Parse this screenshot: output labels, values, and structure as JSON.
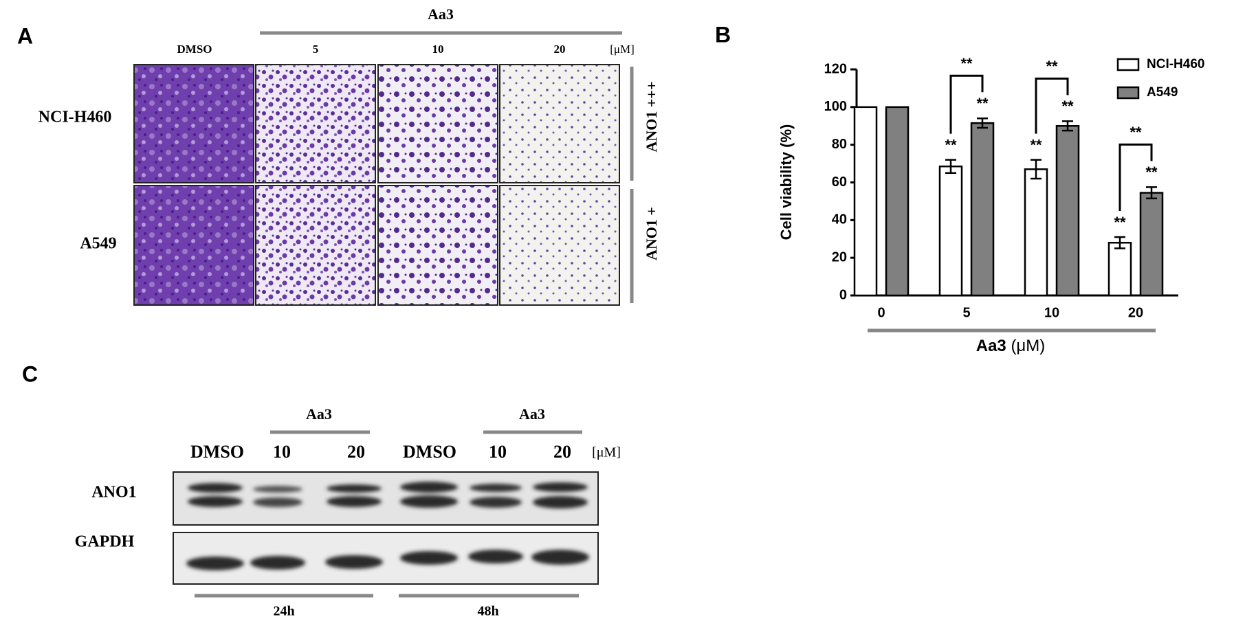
{
  "panel_a": {
    "label": "A",
    "treatment": "Aa3",
    "columns": [
      "DMSO",
      "5",
      "10",
      "20"
    ],
    "unit": "[μM]",
    "rows": [
      "NCI-H460",
      "A549"
    ],
    "expression": [
      "ANO1 +++",
      "ANO1 +"
    ]
  },
  "chart_data": {
    "type": "bar",
    "panel_label": "B",
    "categories": [
      "0",
      "5",
      "10",
      "20"
    ],
    "ylabel": "Cell viability (%)",
    "xlabel": "Aa3",
    "xlabel_unit": "(μM)",
    "ylim": [
      0,
      120
    ],
    "yticks": [
      0,
      20,
      40,
      60,
      80,
      100,
      120
    ],
    "legend": "top-right",
    "series": [
      {
        "name": "NCI-H460",
        "color": "#ffffff",
        "values": [
          100,
          68.5,
          67,
          28
        ],
        "errors": [
          null,
          3.5,
          5,
          3
        ],
        "significance": [
          null,
          "**",
          "**",
          "**"
        ]
      },
      {
        "name": "A549",
        "color": "#808080",
        "values": [
          100,
          91.5,
          90,
          54.5
        ],
        "errors": [
          null,
          2.5,
          2.5,
          3
        ],
        "significance": [
          null,
          "**",
          "**",
          "**"
        ]
      }
    ],
    "pairwise_significance": [
      null,
      "**",
      "**",
      "**"
    ]
  },
  "panel_c": {
    "label": "C",
    "treatment": [
      "Aa3",
      "Aa3"
    ],
    "lanes": [
      "DMSO",
      "10",
      "20",
      "DMSO",
      "10",
      "20"
    ],
    "unit": "[μM]",
    "proteins": [
      "ANO1",
      "GAPDH"
    ],
    "times": [
      "24h",
      "48h"
    ]
  }
}
